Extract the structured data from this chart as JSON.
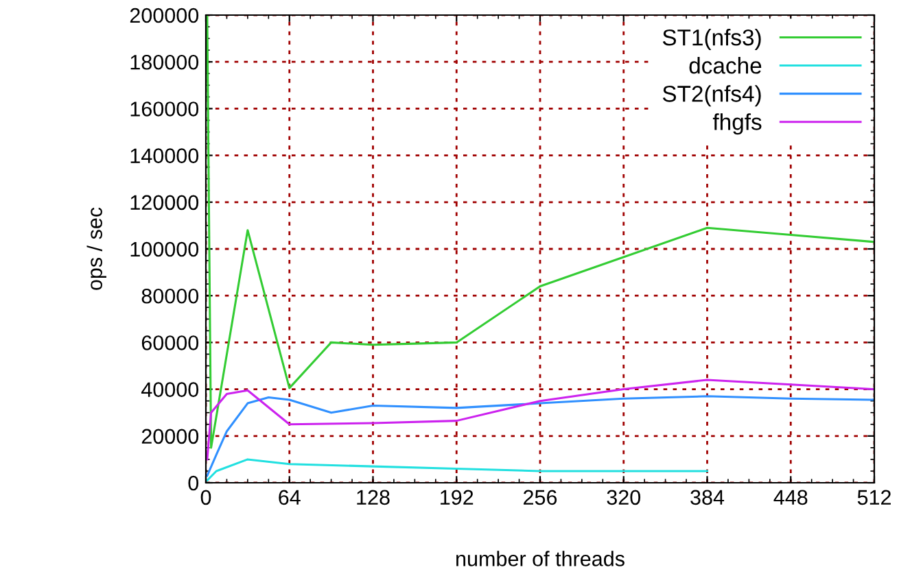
{
  "chart_data": {
    "type": "line",
    "xlabel": "number of threads",
    "ylabel": "ops / sec",
    "xlim": [
      0,
      512
    ],
    "xticks": [
      0,
      64,
      128,
      192,
      256,
      320,
      384,
      448,
      512
    ],
    "ylim": [
      0,
      200000
    ],
    "yticks": [
      0,
      20000,
      40000,
      60000,
      80000,
      100000,
      120000,
      140000,
      160000,
      180000,
      200000
    ],
    "grid": true,
    "legend": "top right",
    "line_style": "solid",
    "marker": "none",
    "series": [
      {
        "name": "ST1(nfs3)",
        "color": "#33cc33",
        "x": [
          1,
          4,
          32,
          64,
          96,
          128,
          160,
          192,
          256,
          384,
          448,
          512
        ],
        "values": [
          200000,
          15000,
          108000,
          40500,
          60000,
          59000,
          59500,
          60000,
          84000,
          109000,
          106000,
          103000
        ]
      },
      {
        "name": "dcache",
        "color": "#22e0e0",
        "x": [
          1,
          8,
          32,
          64,
          128,
          192,
          256,
          384
        ],
        "values": [
          1000,
          5000,
          10000,
          8000,
          7000,
          6000,
          5000,
          5000
        ]
      },
      {
        "name": "ST2(nfs4)",
        "color": "#3090ff",
        "x": [
          1,
          8,
          16,
          32,
          48,
          64,
          96,
          128,
          192,
          256,
          320,
          384,
          448,
          512
        ],
        "values": [
          3000,
          12000,
          22000,
          34000,
          36500,
          35500,
          30000,
          33000,
          32000,
          34000,
          36000,
          37000,
          36000,
          35500
        ]
      },
      {
        "name": "fhgfs",
        "color": "#cc22ee",
        "x": [
          1,
          4,
          16,
          32,
          64,
          128,
          192,
          256,
          320,
          384,
          448,
          512
        ],
        "values": [
          10000,
          30000,
          38000,
          39500,
          25000,
          25500,
          26500,
          35000,
          40000,
          44000,
          42000,
          40000
        ]
      }
    ]
  }
}
